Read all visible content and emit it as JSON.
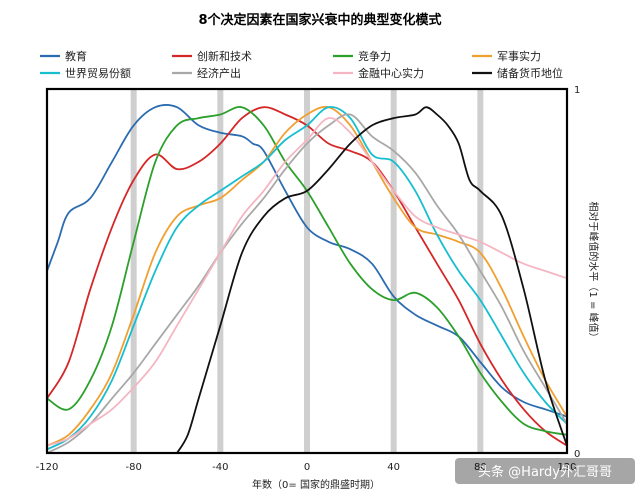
{
  "chart_data": {
    "type": "line",
    "title": "8个决定因素在国家兴衰中的典型变化模式",
    "xlabel": "年数（0= 国家的鼎盛时期）",
    "ylabel": "相对于峰值的水平（1 = 峰值）",
    "xlim": [
      -120,
      120
    ],
    "ylim": [
      0,
      1
    ],
    "x_ticks": [
      "-120",
      "-80",
      "-40",
      "0",
      "40",
      "80",
      "120"
    ],
    "y_ticks": [
      "0",
      "1"
    ],
    "grid_x": [
      -80,
      -40,
      0,
      40,
      80
    ],
    "legend_position": "top",
    "series": [
      {
        "name": "教育",
        "color": "#2b6cb0",
        "x": [
          -120,
          -115,
          -110,
          -100,
          -90,
          -80,
          -70,
          -60,
          -50,
          -40,
          -30,
          -25,
          -20,
          -10,
          0,
          10,
          20,
          30,
          40,
          50,
          60,
          70,
          80,
          90,
          100,
          110,
          120
        ],
        "y": [
          0.5,
          0.58,
          0.66,
          0.7,
          0.8,
          0.9,
          0.95,
          0.95,
          0.9,
          0.88,
          0.87,
          0.85,
          0.83,
          0.72,
          0.62,
          0.58,
          0.56,
          0.52,
          0.43,
          0.38,
          0.35,
          0.32,
          0.25,
          0.18,
          0.14,
          0.12,
          0.1
        ]
      },
      {
        "name": "创新和技术",
        "color": "#d62728",
        "x": [
          -120,
          -110,
          -100,
          -90,
          -80,
          -70,
          -60,
          -50,
          -40,
          -30,
          -20,
          -10,
          0,
          10,
          20,
          30,
          40,
          50,
          60,
          70,
          80,
          90,
          100,
          110,
          120
        ],
        "y": [
          0.15,
          0.25,
          0.45,
          0.62,
          0.75,
          0.82,
          0.78,
          0.8,
          0.85,
          0.92,
          0.95,
          0.93,
          0.9,
          0.85,
          0.83,
          0.8,
          0.72,
          0.62,
          0.52,
          0.42,
          0.3,
          0.2,
          0.12,
          0.06,
          0.02
        ]
      },
      {
        "name": "竞争力",
        "color": "#2ca02c",
        "x": [
          -120,
          -110,
          -100,
          -90,
          -80,
          -70,
          -60,
          -50,
          -40,
          -30,
          -20,
          -10,
          0,
          10,
          20,
          30,
          40,
          50,
          60,
          70,
          80,
          90,
          100,
          110,
          120
        ],
        "y": [
          0.15,
          0.12,
          0.2,
          0.35,
          0.58,
          0.8,
          0.9,
          0.92,
          0.93,
          0.95,
          0.9,
          0.8,
          0.72,
          0.62,
          0.52,
          0.45,
          0.42,
          0.44,
          0.4,
          0.32,
          0.22,
          0.14,
          0.08,
          0.06,
          0.05
        ]
      },
      {
        "name": "军事实力",
        "color": "#f0a030",
        "x": [
          -120,
          -110,
          -100,
          -90,
          -80,
          -70,
          -60,
          -50,
          -40,
          -30,
          -20,
          -10,
          0,
          10,
          20,
          30,
          40,
          50,
          60,
          70,
          80,
          90,
          100,
          110,
          120
        ],
        "y": [
          0.02,
          0.05,
          0.12,
          0.22,
          0.38,
          0.55,
          0.65,
          0.68,
          0.7,
          0.75,
          0.8,
          0.88,
          0.93,
          0.95,
          0.9,
          0.8,
          0.7,
          0.62,
          0.6,
          0.58,
          0.55,
          0.45,
          0.32,
          0.2,
          0.1
        ]
      },
      {
        "name": "世界贸易份额",
        "color": "#17becf",
        "x": [
          -120,
          -110,
          -100,
          -90,
          -80,
          -70,
          -60,
          -50,
          -40,
          -30,
          -20,
          -10,
          0,
          10,
          20,
          30,
          40,
          50,
          60,
          70,
          80,
          90,
          100,
          110,
          120
        ],
        "y": [
          0.01,
          0.04,
          0.1,
          0.2,
          0.35,
          0.5,
          0.62,
          0.68,
          0.72,
          0.76,
          0.8,
          0.86,
          0.9,
          0.95,
          0.92,
          0.82,
          0.8,
          0.72,
          0.6,
          0.5,
          0.42,
          0.32,
          0.22,
          0.14,
          0.08
        ]
      },
      {
        "name": "经济产出",
        "color": "#a8a8a8",
        "x": [
          -120,
          -110,
          -100,
          -90,
          -80,
          -70,
          -60,
          -50,
          -40,
          -30,
          -20,
          -10,
          0,
          10,
          20,
          30,
          40,
          50,
          60,
          70,
          80,
          90,
          100,
          110,
          120
        ],
        "y": [
          0.0,
          0.03,
          0.08,
          0.15,
          0.22,
          0.3,
          0.38,
          0.46,
          0.55,
          0.63,
          0.7,
          0.78,
          0.85,
          0.9,
          0.93,
          0.87,
          0.83,
          0.77,
          0.68,
          0.6,
          0.5,
          0.4,
          0.28,
          0.18,
          0.08
        ]
      },
      {
        "name": "金融中心实力",
        "color": "#f4b6c2",
        "x": [
          -120,
          -110,
          -100,
          -90,
          -80,
          -70,
          -60,
          -50,
          -40,
          -30,
          -20,
          -10,
          0,
          10,
          20,
          30,
          40,
          50,
          60,
          70,
          80,
          90,
          100,
          110,
          120
        ],
        "y": [
          0.02,
          0.04,
          0.08,
          0.12,
          0.18,
          0.25,
          0.35,
          0.45,
          0.55,
          0.65,
          0.72,
          0.8,
          0.86,
          0.92,
          0.88,
          0.8,
          0.72,
          0.65,
          0.62,
          0.6,
          0.58,
          0.55,
          0.52,
          0.5,
          0.48
        ]
      },
      {
        "name": "储备货币地位",
        "color": "#111111",
        "x": [
          -60,
          -55,
          -50,
          -40,
          -30,
          -20,
          -10,
          0,
          10,
          20,
          30,
          40,
          50,
          55,
          60,
          65,
          70,
          75,
          80,
          90,
          100,
          110,
          120
        ],
        "y": [
          0.0,
          0.05,
          0.15,
          0.35,
          0.55,
          0.65,
          0.7,
          0.72,
          0.78,
          0.85,
          0.9,
          0.92,
          0.93,
          0.95,
          0.93,
          0.9,
          0.85,
          0.75,
          0.72,
          0.65,
          0.45,
          0.2,
          0.02
        ]
      }
    ]
  },
  "watermark": "头条 @Hardy外汇哥哥"
}
